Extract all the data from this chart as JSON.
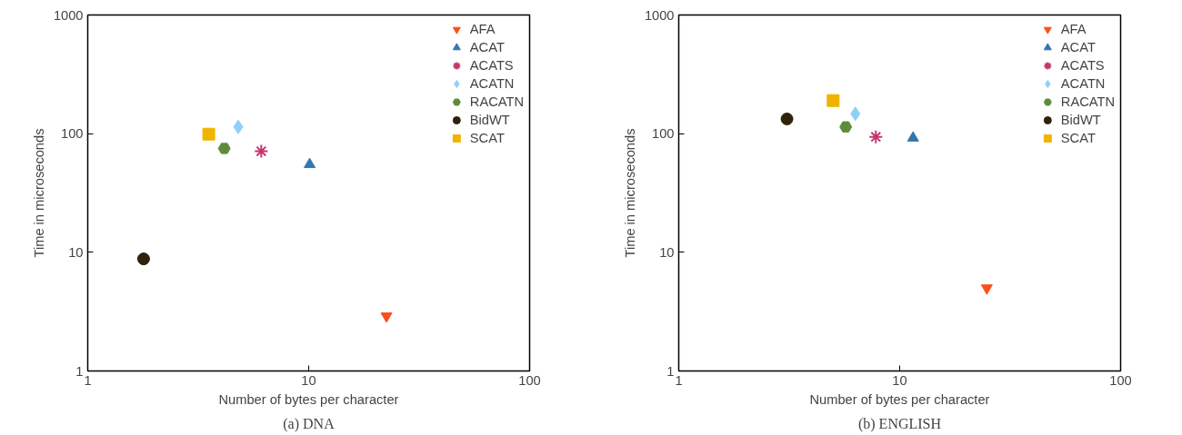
{
  "chart_data": [
    {
      "type": "scatter",
      "title": "(a) DNA",
      "xlabel": "Number of bytes per character",
      "ylabel": "Time in microseconds",
      "log": "xy",
      "grid": false,
      "legend": "top right",
      "xlim": [
        1,
        100
      ],
      "xticks": [
        1,
        10,
        100
      ],
      "ylim": [
        1,
        1000
      ],
      "yticks": [
        1,
        10,
        100,
        1000
      ],
      "series": [
        {
          "name": "AFA",
          "color": "#fc4e1c",
          "x": [
            22.5
          ],
          "values": [
            2.9
          ]
        },
        {
          "name": "ACAT",
          "color": "#3575b0",
          "marker": "triangle",
          "x": [
            10.1
          ],
          "values": [
            55
          ]
        },
        {
          "name": "ACATS",
          "color": "#c8346f",
          "x": [
            6.1
          ],
          "values": [
            71
          ]
        },
        {
          "name": "ACATN",
          "color": "#8fd0f8",
          "marker": "diamond",
          "x": [
            4.8
          ],
          "values": [
            114
          ]
        },
        {
          "name": "RACATN",
          "color": "#5e8c3a",
          "x": [
            4.15
          ],
          "values": [
            75
          ]
        },
        {
          "name": "BidWT",
          "color": "#2e2309",
          "marker": "circle",
          "x": [
            1.79
          ],
          "values": [
            8.8
          ]
        },
        {
          "name": "SCAT",
          "color": "#f0b400",
          "marker": "square",
          "x": [
            3.53
          ],
          "values": [
            99
          ]
        }
      ]
    },
    {
      "type": "scatter",
      "title": "(b) ENGLISH",
      "xlabel": "Number of bytes per character",
      "ylabel": "Time in microseconds",
      "log": "xy",
      "grid": false,
      "legend": "top right",
      "xlim": [
        1,
        100
      ],
      "xticks": [
        1,
        10,
        100
      ],
      "ylim": [
        1,
        1000
      ],
      "yticks": [
        1,
        10,
        100,
        1000
      ],
      "series": [
        {
          "name": "AFA",
          "color": "#fc4e1c",
          "x": [
            24.8
          ],
          "values": [
            5.0
          ]
        },
        {
          "name": "ACAT",
          "color": "#3575b0",
          "marker": "triangle",
          "x": [
            11.5
          ],
          "values": [
            92
          ]
        },
        {
          "name": "ACATS",
          "color": "#c8346f",
          "x": [
            7.8
          ],
          "values": [
            94
          ]
        },
        {
          "name": "ACATN",
          "color": "#8fd0f8",
          "marker": "diamond",
          "x": [
            6.3
          ],
          "values": [
            147
          ]
        },
        {
          "name": "RACATN",
          "color": "#5e8c3a",
          "x": [
            5.7
          ],
          "values": [
            114
          ]
        },
        {
          "name": "BidWT",
          "color": "#2e2309",
          "marker": "circle",
          "x": [
            3.09
          ],
          "values": [
            133
          ]
        },
        {
          "name": "SCAT",
          "color": "#f0b400",
          "marker": "square",
          "x": [
            5.0
          ],
          "values": [
            190
          ]
        }
      ]
    }
  ]
}
